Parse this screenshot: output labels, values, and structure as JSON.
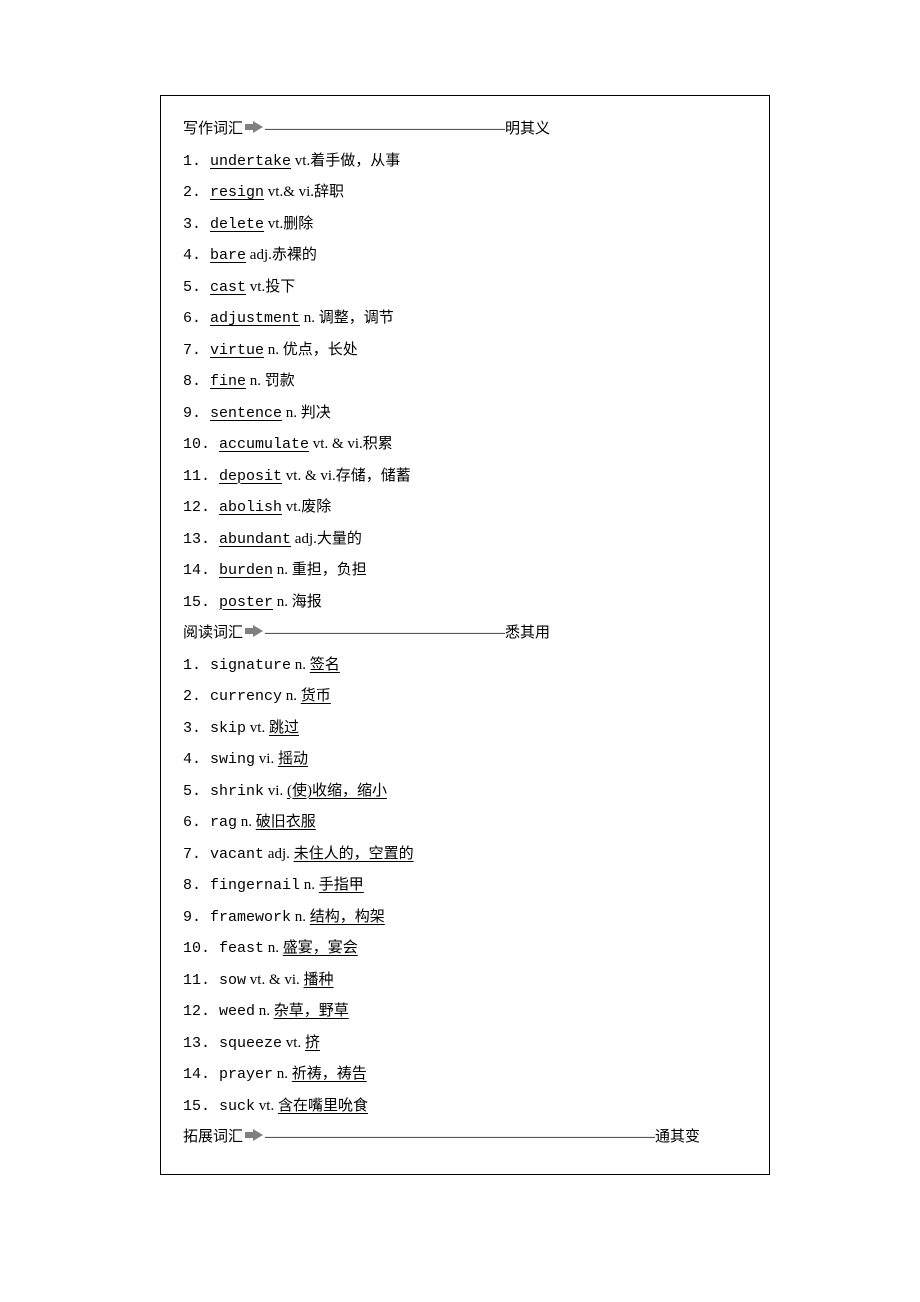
{
  "section1": {
    "label_prefix": "写作词汇",
    "dashes": "————————————————",
    "label_suffix": "明其义",
    "arrow_fill": "#808080",
    "entries": [
      {
        "num": "1.",
        "word": "undertake",
        "def": " vt.着手做，从事"
      },
      {
        "num": "2.",
        "word": "resign",
        "def": " vt.& vi.辞职"
      },
      {
        "num": "3.",
        "word": "delete",
        "def": " vt.删除"
      },
      {
        "num": "4.",
        "word": "bare",
        "def": " adj.赤裸的"
      },
      {
        "num": "5.",
        "word": "cast",
        "def": " vt.投下"
      },
      {
        "num": "6.",
        "word": "adjustment",
        "def": " n. 调整，调节"
      },
      {
        "num": "7.",
        "word": "virtue",
        "def": " n. 优点，长处"
      },
      {
        "num": "8.",
        "word": "fine",
        "def": " n. 罚款"
      },
      {
        "num": "9.",
        "word": "sentence",
        "def": " n. 判决"
      },
      {
        "num": "10.",
        "word": "accumulate",
        "def": " vt. & vi.积累"
      },
      {
        "num": "11.",
        "word": "deposit",
        "def": " vt. & vi.存储，储蓄"
      },
      {
        "num": "12.",
        "word": "abolish",
        "def": " vt.废除"
      },
      {
        "num": "13.",
        "word": "abundant",
        "def": " adj.大量的"
      },
      {
        "num": "14.",
        "word": "burden",
        "def": " n. 重担，负担"
      },
      {
        "num": "15.",
        "word": "poster",
        "def": " n. 海报"
      }
    ]
  },
  "section2": {
    "label_prefix": "阅读词汇",
    "dashes": "————————————————",
    "label_suffix": "悉其用",
    "arrow_fill": "#808080",
    "entries": [
      {
        "num": "1.",
        "word": "signature",
        "pos": " n. ",
        "def": "签名"
      },
      {
        "num": "2.",
        "word": "currency",
        "pos": " n. ",
        "def": "货币"
      },
      {
        "num": "3.",
        "word": "skip",
        "pos": " vt. ",
        "def": "跳过"
      },
      {
        "num": "4.",
        "word": "swing",
        "pos": " vi. ",
        "def": "摇动"
      },
      {
        "num": "5.",
        "word": "shrink",
        "pos": " vi. ",
        "def": "(使)收缩，缩小"
      },
      {
        "num": "6.",
        "word": "rag",
        "pos": " n. ",
        "def": "破旧衣服"
      },
      {
        "num": "7.",
        "word": "vacant",
        "pos": " adj. ",
        "def": "未住人的，空置的"
      },
      {
        "num": "8.",
        "word": "fingernail",
        "pos": " n. ",
        "def": "手指甲"
      },
      {
        "num": "9.",
        "word": "framework",
        "pos": " n. ",
        "def": "结构，构架"
      },
      {
        "num": "10.",
        "word": "feast",
        "pos": " n. ",
        "def": "盛宴，宴会"
      },
      {
        "num": "11.",
        "word": "sow",
        "pos": " vt. & vi. ",
        "def": "播种"
      },
      {
        "num": "12.",
        "word": "weed",
        "pos": " n. ",
        "def": "杂草，野草"
      },
      {
        "num": "13.",
        "word": "squeeze",
        "pos": " vt.  ",
        "def": "挤"
      },
      {
        "num": "14.",
        "word": "prayer",
        "pos": " n. ",
        "def": "祈祷，祷告"
      },
      {
        "num": "15.",
        "word": "suck",
        "pos": " vt. ",
        "def": "含在嘴里吮食"
      }
    ]
  },
  "section3": {
    "label_prefix": "拓展词汇",
    "dashes": "——————————————————————————",
    "label_suffix": "通其变",
    "arrow_fill": "#808080"
  }
}
